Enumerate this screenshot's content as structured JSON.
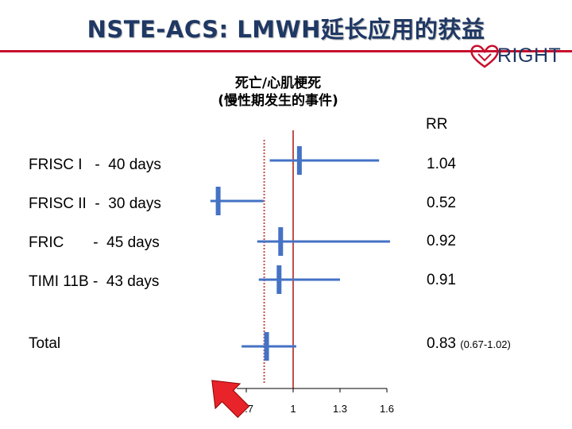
{
  "title": "NSTE-ACS: LMWH延长应用的获益",
  "logo": {
    "text": "RIGHT"
  },
  "subtitle": {
    "line1": "死亡/心肌梗死",
    "line2": "(慢性期发生的事件)"
  },
  "colors": {
    "title": "#1f3864",
    "accent_rule": "#c8102e",
    "marks": "#4472c4",
    "reference_line": "#c0504d",
    "arrow": "#e8232a"
  },
  "chart_data": {
    "type": "forest",
    "column_header": "RR",
    "x_ticks": [
      0.7,
      1,
      1.3,
      1.6
    ],
    "x_tick_labels": [
      "0.7",
      "1",
      "1.3",
      "1.6"
    ],
    "xlim": [
      0.47,
      1.6
    ],
    "reference_value": 1,
    "pooled_reference_value": 0.83,
    "rows": [
      {
        "label": "FRISC I   -  40 days",
        "rr": 1.04,
        "rr_text": "1.04",
        "ci": [
          0.85,
          1.55
        ],
        "ci_text": ""
      },
      {
        "label": "FRISC II  -  30 days",
        "rr": 0.52,
        "rr_text": "0.52",
        "ci": [
          0.47,
          0.81
        ],
        "ci_text": ""
      },
      {
        "label": "FRIC       -  45 days",
        "rr": 0.92,
        "rr_text": "0.92",
        "ci": [
          0.77,
          1.62
        ],
        "ci_text": ""
      },
      {
        "label": "TIMI 11B -  43 days",
        "rr": 0.91,
        "rr_text": "0.91",
        "ci": [
          0.78,
          1.3
        ],
        "ci_text": ""
      },
      {
        "label": "Total",
        "rr": 0.83,
        "rr_text": "0.83",
        "ci": [
          0.67,
          1.02
        ],
        "ci_text": "(0.67-1.02)"
      }
    ]
  }
}
